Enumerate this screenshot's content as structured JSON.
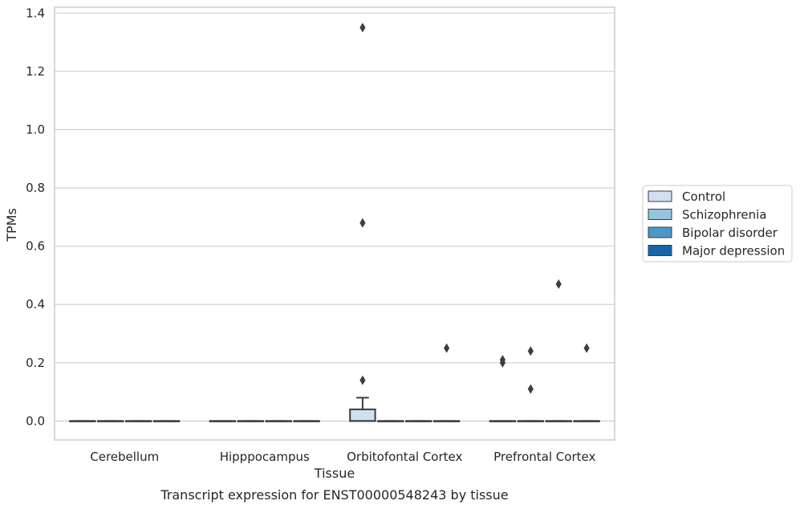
{
  "chart_data": {
    "type": "box",
    "title": "",
    "caption": "Transcript expression for ENST00000548243 by tissue",
    "xlabel": "Tissue",
    "ylabel": "TPMs",
    "ylim": [
      -0.065,
      1.42
    ],
    "yticks": [
      "0.0",
      "0.2",
      "0.4",
      "0.6",
      "0.8",
      "1.0",
      "1.2",
      "1.4"
    ],
    "grid": "horizontal",
    "legend_position": "right",
    "categories": [
      "Cerebellum",
      "Hipppocampus",
      "Orbitofontal Cortex",
      "Prefrontal Cortex"
    ],
    "series": [
      {
        "name": "Control",
        "color": "#d0e0f0"
      },
      {
        "name": "Schizophrenia",
        "color": "#94c4df"
      },
      {
        "name": "Bipolar disorder",
        "color": "#4a98c9"
      },
      {
        "name": "Major depression",
        "color": "#1764ab"
      }
    ],
    "boxes": [
      {
        "category": 0,
        "series": 0,
        "q1": 0,
        "median": 0,
        "q3": 0,
        "whisker_low": 0,
        "whisker_high": 0
      },
      {
        "category": 0,
        "series": 1,
        "q1": 0,
        "median": 0,
        "q3": 0,
        "whisker_low": 0,
        "whisker_high": 0
      },
      {
        "category": 0,
        "series": 2,
        "q1": 0,
        "median": 0,
        "q3": 0,
        "whisker_low": 0,
        "whisker_high": 0
      },
      {
        "category": 0,
        "series": 3,
        "q1": 0,
        "median": 0,
        "q3": 0,
        "whisker_low": 0,
        "whisker_high": 0
      },
      {
        "category": 1,
        "series": 0,
        "q1": 0,
        "median": 0,
        "q3": 0,
        "whisker_low": 0,
        "whisker_high": 0
      },
      {
        "category": 1,
        "series": 1,
        "q1": 0,
        "median": 0,
        "q3": 0,
        "whisker_low": 0,
        "whisker_high": 0
      },
      {
        "category": 1,
        "series": 2,
        "q1": 0,
        "median": 0,
        "q3": 0,
        "whisker_low": 0,
        "whisker_high": 0
      },
      {
        "category": 1,
        "series": 3,
        "q1": 0,
        "median": 0,
        "q3": 0,
        "whisker_low": 0,
        "whisker_high": 0
      },
      {
        "category": 2,
        "series": 0,
        "q1": 0,
        "median": 0,
        "q3": 0.04,
        "whisker_low": 0,
        "whisker_high": 0.08
      },
      {
        "category": 2,
        "series": 1,
        "q1": 0,
        "median": 0,
        "q3": 0,
        "whisker_low": 0,
        "whisker_high": 0
      },
      {
        "category": 2,
        "series": 2,
        "q1": 0,
        "median": 0,
        "q3": 0,
        "whisker_low": 0,
        "whisker_high": 0
      },
      {
        "category": 2,
        "series": 3,
        "q1": 0,
        "median": 0,
        "q3": 0,
        "whisker_low": 0,
        "whisker_high": 0
      },
      {
        "category": 3,
        "series": 0,
        "q1": 0,
        "median": 0,
        "q3": 0,
        "whisker_low": 0,
        "whisker_high": 0
      },
      {
        "category": 3,
        "series": 1,
        "q1": 0,
        "median": 0,
        "q3": 0,
        "whisker_low": 0,
        "whisker_high": 0
      },
      {
        "category": 3,
        "series": 2,
        "q1": 0,
        "median": 0,
        "q3": 0,
        "whisker_low": 0,
        "whisker_high": 0
      },
      {
        "category": 3,
        "series": 3,
        "q1": 0,
        "median": 0,
        "q3": 0,
        "whisker_low": 0,
        "whisker_high": 0
      }
    ],
    "outliers": [
      {
        "category": 2,
        "series": 0,
        "value": 1.35
      },
      {
        "category": 2,
        "series": 0,
        "value": 0.68
      },
      {
        "category": 2,
        "series": 0,
        "value": 0.14
      },
      {
        "category": 2,
        "series": 3,
        "value": 0.25
      },
      {
        "category": 3,
        "series": 0,
        "value": 0.21
      },
      {
        "category": 3,
        "series": 0,
        "value": 0.2
      },
      {
        "category": 3,
        "series": 1,
        "value": 0.24
      },
      {
        "category": 3,
        "series": 1,
        "value": 0.11
      },
      {
        "category": 3,
        "series": 2,
        "value": 0.47
      },
      {
        "category": 3,
        "series": 3,
        "value": 0.25
      }
    ]
  }
}
